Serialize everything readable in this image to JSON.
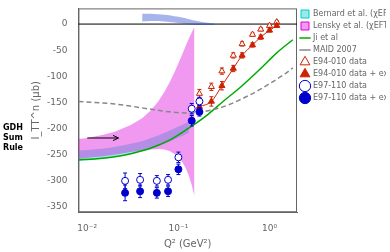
{
  "chart_data": {
    "type": "line",
    "log": "x",
    "xlabel": "Q² (GeV²)",
    "ylabel": "I_TT^n (μb)",
    "xlim": [
      0.008,
      2.0
    ],
    "ylim": [
      -360,
      30
    ],
    "xticks": [
      {
        "value": 0.01,
        "label": "10⁻²"
      },
      {
        "value": 0.1,
        "label": "10⁻¹"
      },
      {
        "value": 1,
        "label": "10⁰"
      }
    ],
    "yticks": [
      0,
      -50,
      -100,
      -150,
      -200,
      -250,
      -300,
      -350
    ],
    "grid": false,
    "legend": "upper right",
    "series": [
      {
        "name": "Bernard et al. (χEFT)",
        "type": "band",
        "color": "#00cccc",
        "x": [
          0.008,
          0.01,
          0.015,
          0.02,
          0.03,
          0.04,
          0.05,
          0.06,
          0.07,
          0.08,
          0.09,
          0.1,
          0.11,
          0.12,
          0.13
        ],
        "upper": [
          -242,
          -241,
          -238,
          -235,
          -229,
          -224,
          -218,
          -213,
          -208,
          -204,
          -200,
          -196,
          -193,
          -190,
          -187
        ],
        "lower": [
          -262,
          -261,
          -258,
          -255,
          -249,
          -244,
          -239,
          -234,
          -229,
          -225,
          -221,
          -217,
          -214,
          -211,
          -208
        ]
      },
      {
        "name": "Lensky et al. (χEFT)",
        "type": "band",
        "color": "#dd00dd",
        "x": [
          0.008,
          0.01,
          0.015,
          0.02,
          0.03,
          0.04,
          0.05,
          0.06,
          0.07,
          0.08,
          0.09,
          0.1,
          0.11,
          0.12,
          0.13,
          0.14,
          0.15
        ],
        "upper": [
          -220,
          -218,
          -212,
          -206,
          -193,
          -180,
          -165,
          -148,
          -130,
          -112,
          -93,
          -75,
          -58,
          -42,
          -28,
          -16,
          -5
        ],
        "lower": [
          -258,
          -256,
          -253,
          -250,
          -245,
          -242,
          -240,
          -239,
          -240,
          -243,
          -248,
          -255,
          -264,
          -275,
          -290,
          -308,
          -330
        ]
      },
      {
        "name": "Ji et al",
        "type": "line",
        "color": "#00aa00",
        "line_style": "solid",
        "x": [
          0.008,
          0.012,
          0.02,
          0.03,
          0.05,
          0.08,
          0.12,
          0.2,
          0.3,
          0.5,
          0.8,
          1.2,
          1.8
        ],
        "values": [
          -260,
          -258,
          -254,
          -248,
          -237,
          -222,
          -203,
          -176,
          -150,
          -118,
          -85,
          -55,
          -30
        ]
      },
      {
        "name": "MAID 2007",
        "type": "line",
        "color": "#888888",
        "line_style": "dashed",
        "x": [
          0.008,
          0.012,
          0.02,
          0.03,
          0.05,
          0.08,
          0.12,
          0.18,
          0.25,
          0.35,
          0.5,
          0.7,
          1.0,
          1.4,
          1.8
        ],
        "values": [
          -148,
          -150,
          -153,
          -157,
          -163,
          -168,
          -170,
          -168,
          -163,
          -155,
          -143,
          -130,
          -114,
          -98,
          -84
        ]
      },
      {
        "type": "band",
        "color": "#2244cc",
        "x": [
          0.04,
          0.05,
          0.06,
          0.07,
          0.08,
          0.09,
          0.1,
          0.12,
          0.14,
          0.16,
          0.18,
          0.2,
          0.22,
          0.25
        ],
        "upper": [
          20,
          20,
          19,
          18,
          17,
          15,
          14,
          11,
          8,
          6,
          4,
          3,
          2,
          1
        ],
        "lower": [
          5,
          6,
          6,
          5,
          4,
          3,
          2,
          0,
          -1,
          -2,
          -2,
          -2,
          -2,
          -2
        ]
      },
      {
        "name": "E94-010 data",
        "type": "scatter",
        "marker": "triangle_open",
        "color": "#cc2200",
        "x": [
          0.17,
          0.23,
          0.3,
          0.4,
          0.5,
          0.65,
          0.8,
          1.0,
          1.2
        ],
        "values": [
          -133,
          -120,
          -90,
          -60,
          -38,
          -20,
          -10,
          -3,
          4
        ],
        "errors": [
          8,
          7,
          6,
          5,
          4,
          3,
          3,
          3,
          3
        ]
      },
      {
        "name": "E94-010 data + extr.",
        "type": "scatter",
        "marker": "triangle",
        "line_style": "solid",
        "color": "#cc2200",
        "x": [
          0.17,
          0.23,
          0.3,
          0.4,
          0.5,
          0.65,
          0.8,
          1.0,
          1.2
        ],
        "values": [
          -158,
          -148,
          -118,
          -85,
          -60,
          -40,
          -25,
          -12,
          -3
        ],
        "errors": [
          10,
          9,
          8,
          6,
          5,
          4,
          4,
          3,
          3
        ]
      },
      {
        "name": "E97-110 data",
        "type": "scatter",
        "marker": "circle_open",
        "color": "#0000cc",
        "x": [
          0.026,
          0.038,
          0.058,
          0.077,
          0.1,
          0.14,
          0.17
        ],
        "values": [
          -300,
          -298,
          -300,
          -298,
          -255,
          -162,
          -148
        ],
        "errors": [
          15,
          12,
          10,
          10,
          10,
          10,
          8
        ]
      },
      {
        "name": "E97-110 data + extr.",
        "type": "scatter",
        "marker": "circle",
        "color": "#0000cc",
        "x": [
          0.026,
          0.038,
          0.058,
          0.077,
          0.1,
          0.14,
          0.17
        ],
        "values": [
          -323,
          -320,
          -323,
          -320,
          -278,
          -185,
          -168
        ],
        "errors": [
          15,
          12,
          10,
          10,
          10,
          10,
          8
        ]
      }
    ],
    "annotations": [
      {
        "type": "hline",
        "y": 0
      },
      {
        "text": "GDH\nSum\nRule",
        "arrow_from": [
          0.01,
          -218
        ],
        "arrow_to": [
          0.022,
          -218
        ]
      }
    ]
  }
}
